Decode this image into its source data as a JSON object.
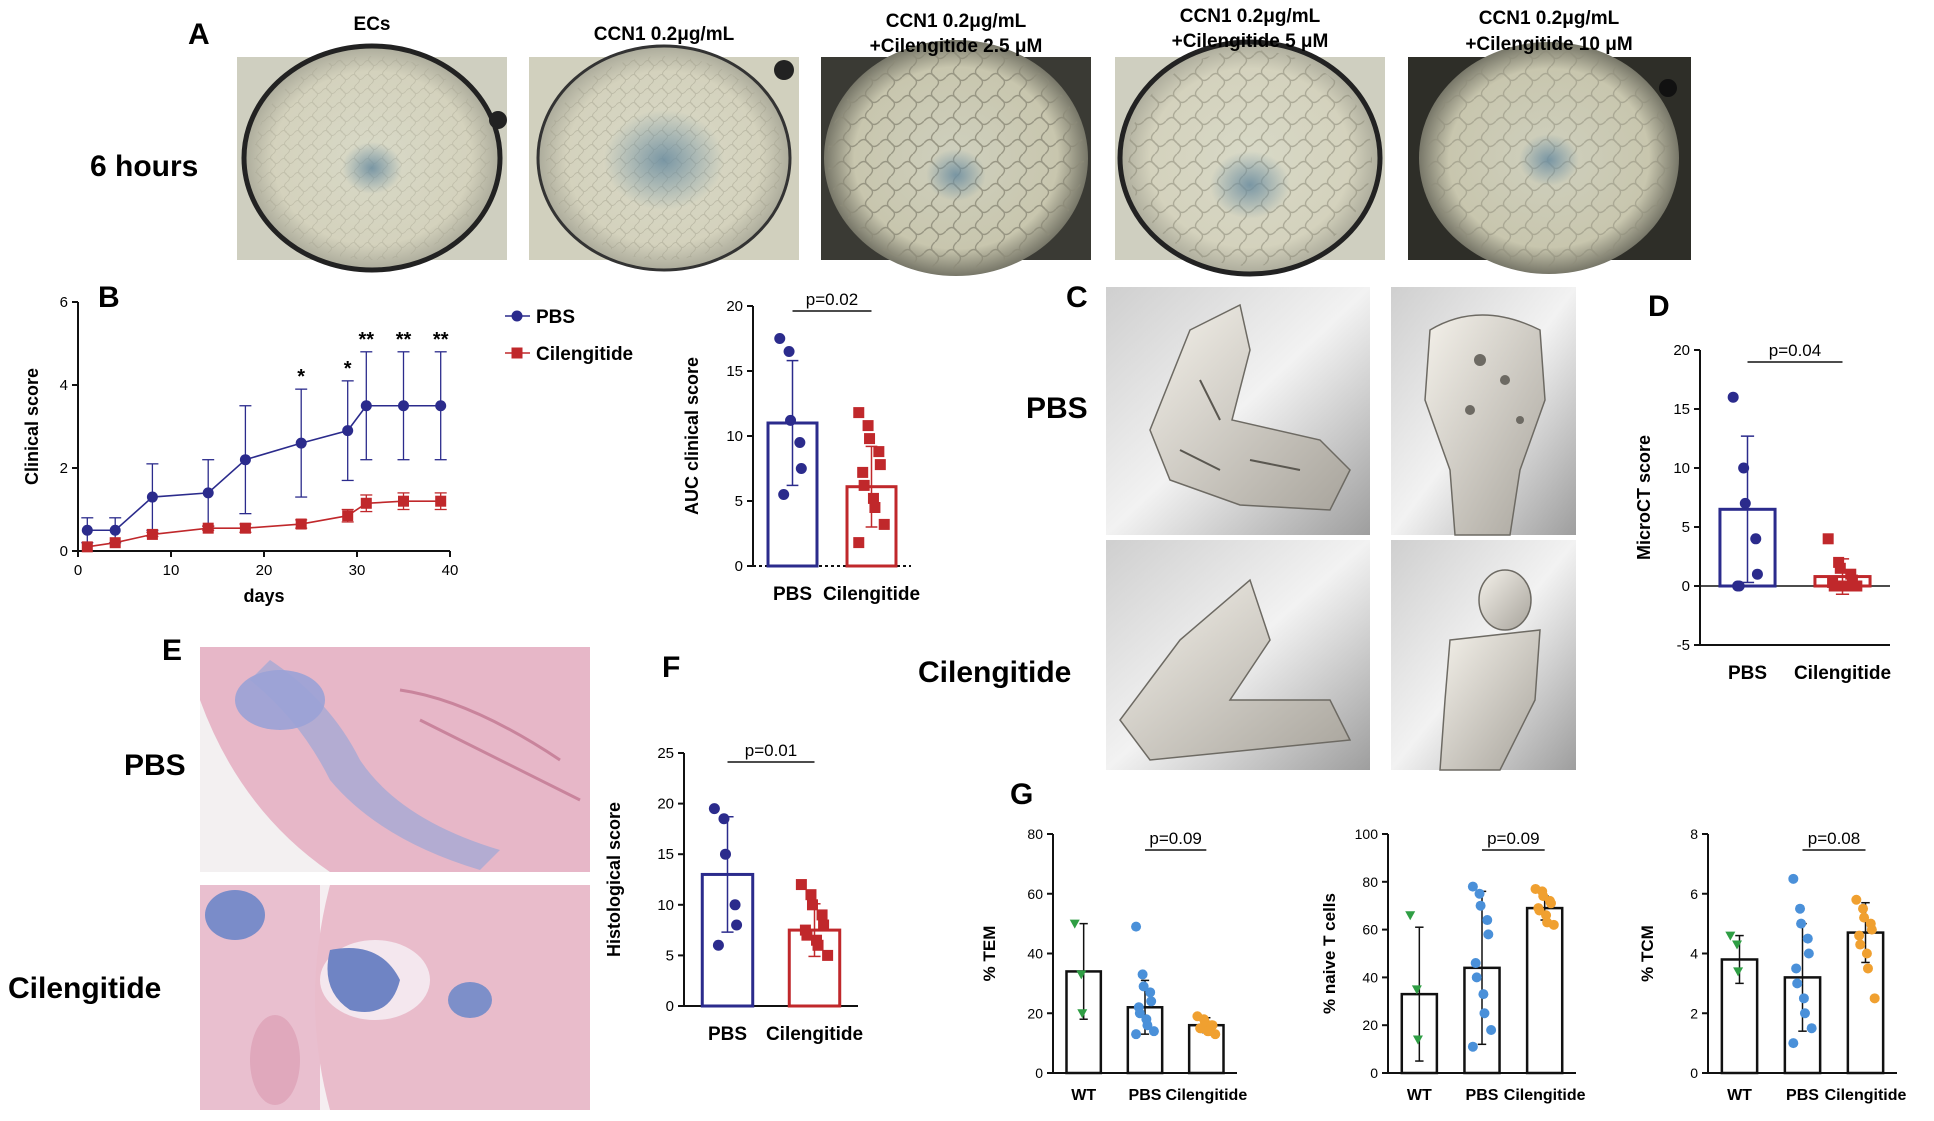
{
  "panel_a": {
    "letter": "A",
    "row_label": "6 hours",
    "columns": [
      {
        "line1": "ECs",
        "line2": ""
      },
      {
        "line1": "CCN1 0.2μg/mL",
        "line2": ""
      },
      {
        "line1": "CCN1 0.2μg/mL",
        "line2": "+Cilengitide 2.5 μM"
      },
      {
        "line1": "CCN1 0.2μg/mL",
        "line2": "+Cilengitide 5 μM"
      },
      {
        "line1": "CCN1 0.2μg/mL",
        "line2": "+Cilengitide 10 μM"
      }
    ]
  },
  "panel_c": {
    "letter": "C",
    "row1": "PBS",
    "row2": "Cilengitide"
  },
  "panel_e": {
    "letter": "E",
    "row1": "PBS",
    "row2": "Cilengitide"
  },
  "panel_g": {
    "letter": "G"
  },
  "colors": {
    "pbs": "#2b2b8c",
    "cilengitide": "#c0282b",
    "wt": "#2f9e44",
    "g_pbs": "#4a90d9",
    "g_cil": "#f0a030"
  },
  "chart_data": [
    {
      "id": "B-line",
      "letter": "B",
      "type": "line",
      "xlabel": "days",
      "ylabel": "Clinical score",
      "xlim": [
        0,
        40
      ],
      "ylim": [
        0,
        6
      ],
      "xticks": [
        "0",
        "10",
        "20",
        "30",
        "40"
      ],
      "yticks": [
        "0",
        "2",
        "4",
        "6"
      ],
      "legend": [
        "PBS",
        "Cilengitide"
      ],
      "series": [
        {
          "name": "PBS",
          "x": [
            1,
            4,
            8,
            14,
            18,
            24,
            29,
            31,
            35,
            39
          ],
          "y": [
            0.5,
            0.5,
            1.3,
            1.4,
            2.2,
            2.6,
            2.9,
            3.5,
            3.5,
            3.5
          ],
          "err": [
            0.3,
            0.3,
            0.8,
            0.8,
            1.3,
            1.3,
            1.2,
            1.3,
            1.3,
            1.3
          ]
        },
        {
          "name": "Cilengitide",
          "x": [
            1,
            4,
            8,
            14,
            18,
            24,
            29,
            31,
            35,
            39
          ],
          "y": [
            0.1,
            0.2,
            0.4,
            0.55,
            0.55,
            0.65,
            0.85,
            1.15,
            1.2,
            1.2
          ],
          "err": [
            0,
            0,
            0.05,
            0.05,
            0.1,
            0.1,
            0.15,
            0.2,
            0.2,
            0.2
          ]
        }
      ],
      "annotations": [
        {
          "x": 24,
          "text": "*"
        },
        {
          "x": 29,
          "text": "*"
        },
        {
          "x": 31,
          "text": "**"
        },
        {
          "x": 35,
          "text": "**"
        },
        {
          "x": 39,
          "text": "**"
        }
      ]
    },
    {
      "id": "B-bar",
      "type": "bar",
      "ylabel": "AUC clinical score",
      "ylim": [
        0,
        20
      ],
      "yticks": [
        "0",
        "5",
        "10",
        "15",
        "20"
      ],
      "categories": [
        "PBS",
        "Cilengitide"
      ],
      "values": [
        11.0,
        6.1
      ],
      "err": [
        4.8,
        3.1
      ],
      "p_value": "p=0.02",
      "points": [
        [
          17.5,
          16.5,
          11.2,
          9.5,
          7.5,
          5.5
        ],
        [
          11.8,
          10.8,
          9.8,
          8.8,
          7.8,
          7.2,
          6.2,
          5.2,
          4.5,
          3.2,
          1.8
        ]
      ]
    },
    {
      "id": "D",
      "letter": "D",
      "type": "bar",
      "ylabel": "MicroCT score",
      "ylim": [
        -5,
        20
      ],
      "yticks": [
        "-5",
        "0",
        "5",
        "10",
        "15",
        "20"
      ],
      "categories": [
        "PBS",
        "Cilengitide"
      ],
      "values": [
        6.5,
        0.8
      ],
      "err": [
        6.2,
        1.5
      ],
      "p_value": "p=0.04",
      "points": [
        [
          16,
          10,
          7,
          4,
          1,
          0,
          0
        ],
        [
          4,
          2,
          1.5,
          1,
          0.5,
          0.3,
          0,
          0,
          0,
          0
        ]
      ]
    },
    {
      "id": "F",
      "letter": "F",
      "type": "bar",
      "ylabel": "Histological score",
      "ylim": [
        0,
        25
      ],
      "yticks": [
        "0",
        "5",
        "10",
        "15",
        "20",
        "25"
      ],
      "categories": [
        "PBS",
        "Cilengitide"
      ],
      "values": [
        13.0,
        7.5
      ],
      "err": [
        5.7,
        2.6
      ],
      "p_value": "p=0.01",
      "points": [
        [
          19.5,
          18.5,
          15,
          10,
          8,
          6
        ],
        [
          12,
          11,
          10,
          9,
          8,
          7.5,
          7,
          6.5,
          6,
          5
        ]
      ]
    },
    {
      "id": "G1",
      "type": "bar",
      "ylabel": "% TEM",
      "ylim": [
        0,
        80
      ],
      "yticks": [
        "0",
        "20",
        "40",
        "60",
        "80"
      ],
      "categories": [
        "WT",
        "PBS",
        "Cilengitide"
      ],
      "values": [
        34,
        22,
        16
      ],
      "err": [
        16,
        9,
        2.5
      ],
      "p_value": "p=0.09",
      "points": [
        [
          50,
          33,
          20
        ],
        [
          49,
          33,
          29,
          27,
          24,
          22,
          20,
          18,
          16,
          14,
          13
        ],
        [
          19,
          18,
          17,
          16,
          16,
          15,
          15,
          14,
          14,
          13
        ]
      ]
    },
    {
      "id": "G2",
      "type": "bar",
      "ylabel": "% naive T cells",
      "ylim": [
        0,
        100
      ],
      "yticks": [
        "0",
        "20",
        "40",
        "60",
        "80",
        "100"
      ],
      "categories": [
        "WT",
        "PBS",
        "Cilengitide"
      ],
      "values": [
        33,
        44,
        69
      ],
      "err": [
        28,
        32,
        5
      ],
      "p_value": "p=0.09",
      "points": [
        [
          66,
          35,
          14
        ],
        [
          78,
          75,
          70,
          64,
          58,
          46,
          40,
          33,
          25,
          18,
          11
        ],
        [
          77,
          76,
          74,
          72,
          71,
          69,
          68,
          66,
          63,
          62
        ]
      ]
    },
    {
      "id": "G3",
      "type": "bar",
      "ylabel": "% TCM",
      "ylim": [
        0,
        8
      ],
      "yticks": [
        "0",
        "2",
        "4",
        "6",
        "8"
      ],
      "categories": [
        "WT",
        "PBS",
        "Cilengitide"
      ],
      "values": [
        3.8,
        3.2,
        4.7
      ],
      "err": [
        0.8,
        1.8,
        1.0
      ],
      "p_value": "p=0.08",
      "points": [
        [
          4.6,
          4.3,
          3.4
        ],
        [
          6.5,
          5.5,
          5.0,
          4.5,
          4.0,
          3.5,
          3.0,
          2.5,
          2.0,
          1.5,
          1.0
        ],
        [
          5.8,
          5.5,
          5.2,
          5.0,
          4.8,
          4.6,
          4.3,
          4.0,
          3.5,
          2.5
        ]
      ]
    }
  ]
}
